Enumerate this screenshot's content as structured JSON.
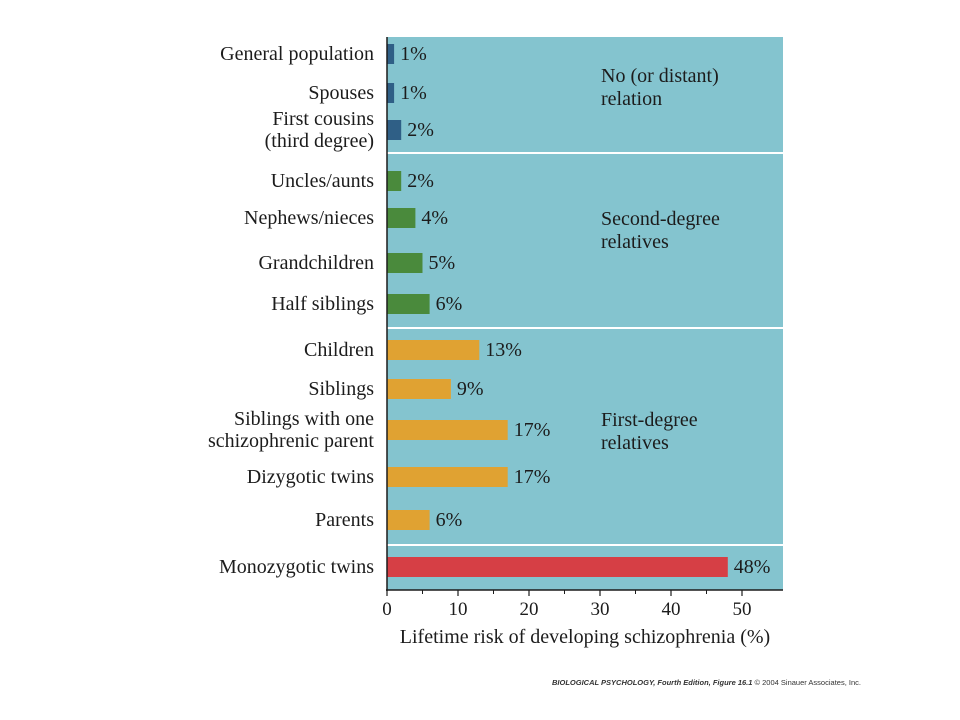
{
  "chart_data": {
    "type": "bar",
    "orientation": "horizontal",
    "xlabel": "Lifetime risk of developing schizophrenia (%)",
    "xlim": [
      0,
      55
    ],
    "xticks": [
      0,
      10,
      20,
      30,
      40,
      50
    ],
    "background_color": "#84c4cf",
    "groups": [
      {
        "label": [
          "No (or distant)",
          "relation"
        ],
        "color": "#2f5f86",
        "items": [
          {
            "category": [
              "General population"
            ],
            "value": 1,
            "value_label": "1%"
          },
          {
            "category": [
              "Spouses"
            ],
            "value": 1,
            "value_label": "1%"
          },
          {
            "category": [
              "First cousins",
              "(third degree)"
            ],
            "value": 2,
            "value_label": "2%"
          }
        ]
      },
      {
        "label": [
          "Second-degree",
          "relatives"
        ],
        "color": "#4a8a3c",
        "items": [
          {
            "category": [
              "Uncles/aunts"
            ],
            "value": 2,
            "value_label": "2%"
          },
          {
            "category": [
              "Nephews/nieces"
            ],
            "value": 4,
            "value_label": "4%"
          },
          {
            "category": [
              "Grandchildren"
            ],
            "value": 5,
            "value_label": "5%"
          },
          {
            "category": [
              "Half siblings"
            ],
            "value": 6,
            "value_label": "6%"
          }
        ]
      },
      {
        "label": [
          "First-degree",
          "relatives"
        ],
        "color": "#e0a232",
        "items": [
          {
            "category": [
              "Children"
            ],
            "value": 13,
            "value_label": "13%"
          },
          {
            "category": [
              "Siblings"
            ],
            "value": 9,
            "value_label": "9%"
          },
          {
            "category": [
              "Siblings with one",
              "schizophrenic parent"
            ],
            "value": 17,
            "value_label": "17%"
          },
          {
            "category": [
              "Dizygotic twins"
            ],
            "value": 17,
            "value_label": "17%"
          },
          {
            "category": [
              "Parents"
            ],
            "value": 6,
            "value_label": "6%"
          }
        ]
      },
      {
        "label": [],
        "color": "#d63f45",
        "items": [
          {
            "category": [
              "Monozygotic twins"
            ],
            "value": 48,
            "value_label": "48%"
          }
        ]
      }
    ]
  },
  "credit": {
    "book_title": "BIOLOGICAL PSYCHOLOGY, Fourth Edition, Figure 16.1",
    "copyright": "© 2004 Sinauer Associates, Inc."
  }
}
